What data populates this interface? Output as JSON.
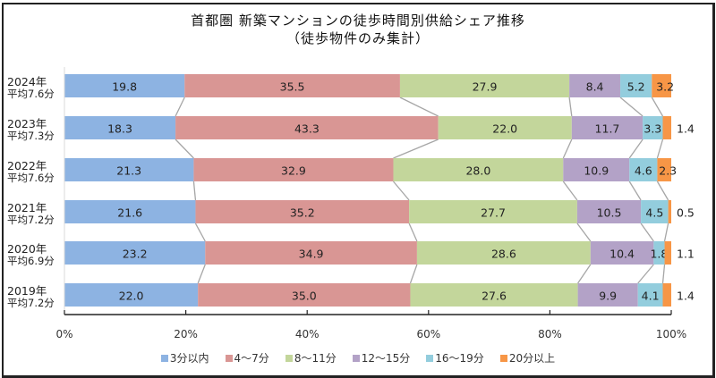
{
  "chart_data": {
    "type": "bar",
    "orientation": "horizontal",
    "stacked": "percent",
    "title": "首都圏 新築マンションの徒歩時間別供給シェア推移",
    "subtitle": "（徒歩物件のみ集計）",
    "categories": [
      {
        "year": "2024年",
        "average": "平均7.6分"
      },
      {
        "year": "2023年",
        "average": "平均7.3分"
      },
      {
        "year": "2022年",
        "average": "平均7.6分"
      },
      {
        "year": "2021年",
        "average": "平均7.2分"
      },
      {
        "year": "2020年",
        "average": "平均6.9分"
      },
      {
        "year": "2019年",
        "average": "平均7.2分"
      }
    ],
    "series": [
      {
        "name": "3分以内",
        "color": "#8db3e2",
        "values": [
          19.8,
          18.3,
          21.3,
          21.6,
          23.2,
          22.0
        ],
        "labels": [
          "19.8",
          "18.3",
          "21.3",
          "21.6",
          "23.2",
          "22.0"
        ]
      },
      {
        "name": "4～7分",
        "color": "#d99694",
        "values": [
          35.5,
          43.3,
          32.9,
          35.2,
          34.9,
          35.0
        ],
        "labels": [
          "35.5",
          "43.3",
          "32.9",
          "35.2",
          "34.9",
          "35.0"
        ]
      },
      {
        "name": "8～11分",
        "color": "#c3d69b",
        "values": [
          27.9,
          22.0,
          28.0,
          27.7,
          28.6,
          27.6
        ],
        "labels": [
          "27.9",
          "22.0",
          "28.0",
          "27.7",
          "28.6",
          "27.6"
        ]
      },
      {
        "name": "12～15分",
        "color": "#b3a2c7",
        "values": [
          8.4,
          11.7,
          10.9,
          10.5,
          10.4,
          9.9
        ],
        "labels": [
          "8.4",
          "11.7",
          "10.9",
          "10.5",
          "10.4",
          "9.9"
        ]
      },
      {
        "name": "16～19分",
        "color": "#93cddd",
        "values": [
          5.2,
          3.3,
          4.6,
          4.5,
          1.8,
          4.1
        ],
        "labels": [
          "5.2",
          "3.3",
          "4.6",
          "4.5",
          "1.8",
          "4.1"
        ]
      },
      {
        "name": "20分以上",
        "color": "#f79646",
        "values": [
          3.2,
          1.4,
          2.3,
          0.5,
          1.1,
          1.4
        ],
        "labels": [
          "3.2",
          "1.4",
          "2.3",
          "0.5",
          "1.1",
          "1.4"
        ]
      }
    ],
    "xlim": [
      0,
      100
    ],
    "xticks": [
      "0%",
      "20%",
      "40%",
      "60%",
      "80%",
      "100%"
    ],
    "series_lines": true,
    "grid": false,
    "legend": "bottom"
  }
}
